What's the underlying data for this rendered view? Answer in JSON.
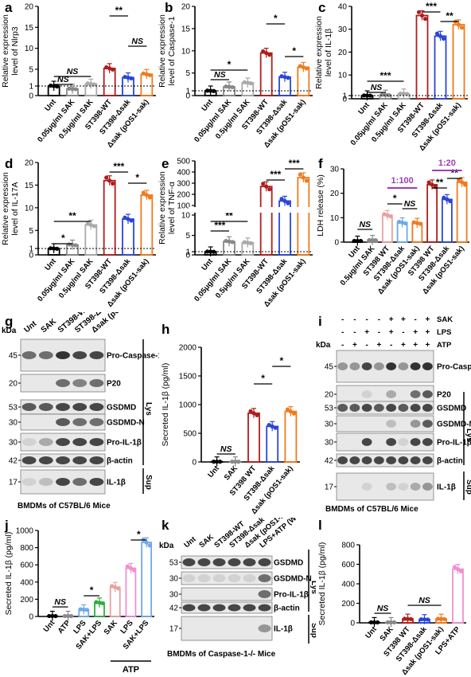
{
  "figure": {
    "panels": [
      {
        "letter": "a",
        "ylabel": [
          "Relative expression",
          "level of Nlrp3"
        ],
        "ticks": [
          "0",
          "1",
          "5",
          "10",
          "15",
          "20"
        ],
        "cats": [
          "Unt",
          "0.05μg/ml SAK",
          "0.5μg/ml SAK",
          "ST398-WT",
          "ST398-Δsak",
          "Δsak (pOS1-sak)"
        ],
        "values": [
          1,
          0.7,
          1.5,
          5.2,
          3.0,
          3.8
        ],
        "sig": [
          "NS",
          "NS",
          "**",
          "NS"
        ]
      },
      {
        "letter": "b",
        "ylabel": [
          "Relative expression",
          "level of Caspase-1"
        ],
        "ticks": [
          "0",
          "1",
          "5",
          "10",
          "15",
          "20"
        ],
        "cats": [
          "Unt",
          "0.05μg/ml SAK",
          "0.5μg/ml SAK",
          "ST398-WT",
          "ST398-Δsak",
          "Δsak (pOS1-sak)"
        ],
        "values": [
          1,
          1.9,
          2.8,
          9.5,
          4.1,
          6.3
        ],
        "sig": [
          "NS",
          "*",
          "*",
          "*"
        ]
      },
      {
        "letter": "c",
        "ylabel": [
          "Relative expression",
          "level of IL-1β"
        ],
        "ticks": [
          "0",
          "1",
          "10",
          "20",
          "30",
          "40"
        ],
        "cats": [
          "Unt",
          "0.05μg/ml SAK",
          "0.5μg/ml SAK",
          "ST398-WT",
          "ST398-Δsak",
          "Δsak (pOS1-sak)"
        ],
        "values": [
          1,
          1.3,
          1.8,
          36,
          27,
          32
        ],
        "sig": [
          "NS",
          "***",
          "***",
          "**"
        ]
      },
      {
        "letter": "d",
        "ylabel": [
          "Relative expression",
          "level of IL-17A"
        ],
        "ticks": [
          "0",
          "1",
          "5",
          "10",
          "15",
          "20"
        ],
        "cats": [
          "Unt",
          "0.05μg/ml SAK",
          "0.5μg/ml SAK",
          "ST398-WT",
          "ST398-Δsak",
          "Δsak (pOS1-sak)"
        ],
        "values": [
          1,
          1.8,
          6.2,
          16,
          7.5,
          12.8
        ],
        "sig": [
          "*",
          "**",
          "***",
          "*"
        ]
      },
      {
        "letter": "e",
        "ylabel": [
          "Relative expression",
          "level of TNF-α"
        ],
        "ticks": [
          "0",
          "1",
          "5",
          "10",
          "100",
          "200",
          "300",
          "400",
          "500"
        ],
        "cats": [
          "Unt",
          "0.05μg/ml SAK",
          "0.5μg/ml SAK",
          "ST398-WT",
          "ST398-Δsak",
          "Δsak (pOS1-sak)"
        ],
        "values": [
          1,
          3.5,
          3.2,
          270,
          140,
          350
        ],
        "sig": [
          "***",
          "**",
          "***",
          "***"
        ]
      },
      {
        "letter": "f",
        "ylabel": [
          "LDH release (%)"
        ],
        "ticks": [
          "0",
          "10",
          "20",
          "30"
        ],
        "cats": [
          "Unt",
          "0.5μg/ml SAK",
          "ST398 WT",
          "ST398-Δsak",
          "Δsak (pOS1-sak)",
          "ST398 WT",
          "ST398-Δsak",
          "Δsak (pOS1-sak)"
        ],
        "values": [
          0.5,
          0.8,
          11,
          8,
          7.8,
          23.5,
          17.5,
          24.5
        ],
        "sig": [
          "NS",
          "*",
          "NS",
          "**",
          "**"
        ],
        "ratio1": "1:100",
        "ratio2": "1:20"
      }
    ],
    "g": {
      "letter": "g",
      "kda": "kDa",
      "lanes": [
        "Unt",
        "SAK",
        "ST398-WT",
        "ST398-Δsak",
        "Δsak (pOS1-sak)"
      ],
      "markers": [
        "45",
        "20",
        "53",
        "30",
        "30",
        "42",
        "17"
      ],
      "bands": [
        "Pro-Caspase-1",
        "P20",
        "GSDMD",
        "GSDMD-N",
        "Pro-IL-1β",
        "β-actin",
        "IL-1β"
      ],
      "lys": "Lys",
      "sup": "Sup",
      "caption": "BMDMs of C57BL/6 Mice"
    },
    "h": {
      "letter": "h",
      "ylabel": "Secreted IL-1β (pg/ml)",
      "ticks": [
        "0",
        "500",
        "1000",
        "1500",
        "2000"
      ],
      "cats": [
        "Unt",
        "SAK",
        "ST398 WT",
        "ST398-Δsak",
        "Δsak (pOS1-sak)"
      ],
      "values": [
        5,
        5,
        850,
        620,
        880
      ],
      "sig": [
        "NS",
        "*",
        "*"
      ]
    },
    "i": {
      "letter": "i",
      "kda": "kDa",
      "rows": [
        {
          "label": "SAK",
          "cells": [
            "-",
            "-",
            "-",
            "-",
            "+",
            "+",
            "-",
            "+"
          ]
        },
        {
          "label": "LPS",
          "cells": [
            "-",
            "-",
            "+",
            "-",
            "+",
            "-",
            "+",
            "+"
          ]
        },
        {
          "label": "ATP",
          "cells": [
            "-",
            "+",
            "-",
            "+",
            "-",
            "+",
            "+",
            "+"
          ]
        }
      ],
      "markers": [
        "45",
        "20",
        "53",
        "30",
        "30",
        "42",
        "17"
      ],
      "bands": [
        "Pro-Caspase-1",
        "P20",
        "GSDMD",
        "GSDMD-N",
        "Pro-IL-1β",
        "β-actin",
        "IL-1β"
      ],
      "lys": "Lys",
      "sup": "Sup",
      "caption": "BMDMs of C57BL/6 Mice"
    },
    "j": {
      "letter": "j",
      "ylabel": "Secreted IL-1β (pg/ml)",
      "ticks": [
        "0",
        "200",
        "400",
        "600",
        "800",
        "1000"
      ],
      "cats": [
        "Unt",
        "ATP",
        "LPS",
        "SAK+LPS",
        "SAK",
        "LPS",
        "SAK+LPS"
      ],
      "values": [
        5,
        5,
        80,
        160,
        340,
        560,
        860
      ],
      "sig": [
        "NS",
        "*",
        "*"
      ],
      "atp": "ATP"
    },
    "k": {
      "letter": "k",
      "kda": "kDa",
      "lanes": [
        "Unt",
        "SAK",
        "ST398-WT",
        "ST398-Δsak",
        "Δsak (pOS1-sak)",
        "LPS+ATP (WT mice)"
      ],
      "markers": [
        "53",
        "30",
        "30",
        "42",
        "17"
      ],
      "bands": [
        "GSDMD",
        "GSDMD-N",
        "Pro-IL-1β",
        "β-actin",
        "IL-1β"
      ],
      "lys": "Lys",
      "sup": "Sup",
      "caption": "BMDMs of Caspase-1-/- Mice"
    },
    "l": {
      "letter": "l",
      "ylabel": "Secreted IL-1β (pg/ml)",
      "ticks": [
        "0",
        "200",
        "400",
        "600",
        "800"
      ],
      "cats": [
        "Unt",
        "SAK",
        "ST398 WT",
        "ST398-Δsak",
        "Δsak (pOS1-sak)",
        "LPS+ATP"
      ],
      "values": [
        5,
        5,
        40,
        35,
        40,
        550
      ],
      "sig": [
        "NS",
        "NS"
      ]
    }
  },
  "colors": {
    "unt": "#000000",
    "sak1": "#888888",
    "sak2": "#aaaaaa",
    "wt": "#b01c1c",
    "dsak": "#2a45d8",
    "comp": "#f07a1e",
    "purple": "#9b3db8",
    "pink": "#f08fd0",
    "lightblue": "#6fa8e8",
    "green": "#2fae3c",
    "lightpink": "#e9a0a0"
  },
  "chart_data": [
    {
      "type": "bar",
      "panel": "a",
      "categories": [
        "Unt",
        "0.05μg/ml SAK",
        "0.5μg/ml SAK",
        "ST398-WT",
        "ST398-Δsak",
        "Δsak (pOS1-sak)"
      ],
      "values": [
        1,
        0.7,
        1.5,
        5.2,
        3.0,
        3.8
      ],
      "ylabel": "Relative expression level of Nlrp3"
    },
    {
      "type": "bar",
      "panel": "b",
      "categories": [
        "Unt",
        "0.05μg/ml SAK",
        "0.5μg/ml SAK",
        "ST398-WT",
        "ST398-Δsak",
        "Δsak (pOS1-sak)"
      ],
      "values": [
        1,
        1.9,
        2.8,
        9.5,
        4.1,
        6.3
      ],
      "ylabel": "Relative expression level of Caspase-1"
    },
    {
      "type": "bar",
      "panel": "c",
      "categories": [
        "Unt",
        "0.05μg/ml SAK",
        "0.5μg/ml SAK",
        "ST398-WT",
        "ST398-Δsak",
        "Δsak (pOS1-sak)"
      ],
      "values": [
        1,
        1.3,
        1.8,
        36,
        27,
        32
      ],
      "ylabel": "Relative expression level of IL-1β"
    },
    {
      "type": "bar",
      "panel": "d",
      "categories": [
        "Unt",
        "0.05μg/ml SAK",
        "0.5μg/ml SAK",
        "ST398-WT",
        "ST398-Δsak",
        "Δsak (pOS1-sak)"
      ],
      "values": [
        1,
        1.8,
        6.2,
        16,
        7.5,
        12.8
      ],
      "ylabel": "Relative expression level of IL-17A"
    },
    {
      "type": "bar",
      "panel": "e",
      "categories": [
        "Unt",
        "0.05μg/ml SAK",
        "0.5μg/ml SAK",
        "ST398-WT",
        "ST398-Δsak",
        "Δsak (pOS1-sak)"
      ],
      "values": [
        1,
        3.5,
        3.2,
        270,
        140,
        350
      ],
      "ylabel": "Relative expression level of TNF-α"
    },
    {
      "type": "bar",
      "panel": "f",
      "categories": [
        "Unt",
        "0.5μg/ml SAK",
        "ST398 WT",
        "ST398-Δsak",
        "Δsak (pOS1-sak)",
        "ST398 WT",
        "ST398-Δsak",
        "Δsak (pOS1-sak)"
      ],
      "values": [
        0.5,
        0.8,
        11,
        8,
        7.8,
        23.5,
        17.5,
        24.5
      ],
      "ylabel": "LDH release (%)"
    },
    {
      "type": "bar",
      "panel": "h",
      "categories": [
        "Unt",
        "SAK",
        "ST398 WT",
        "ST398-Δsak",
        "Δsak (pOS1-sak)"
      ],
      "values": [
        5,
        5,
        850,
        620,
        880
      ],
      "ylabel": "Secreted IL-1β (pg/ml)"
    },
    {
      "type": "bar",
      "panel": "j",
      "categories": [
        "Unt",
        "ATP",
        "LPS",
        "SAK+LPS",
        "SAK",
        "LPS",
        "SAK+LPS"
      ],
      "values": [
        5,
        5,
        80,
        160,
        340,
        560,
        860
      ],
      "ylabel": "Secreted IL-1β (pg/ml)"
    },
    {
      "type": "bar",
      "panel": "l",
      "categories": [
        "Unt",
        "SAK",
        "ST398 WT",
        "ST398-Δsak",
        "Δsak (pOS1-sak)",
        "LPS+ATP"
      ],
      "values": [
        5,
        5,
        40,
        35,
        40,
        550
      ],
      "ylabel": "Secreted IL-1β (pg/ml)"
    }
  ]
}
